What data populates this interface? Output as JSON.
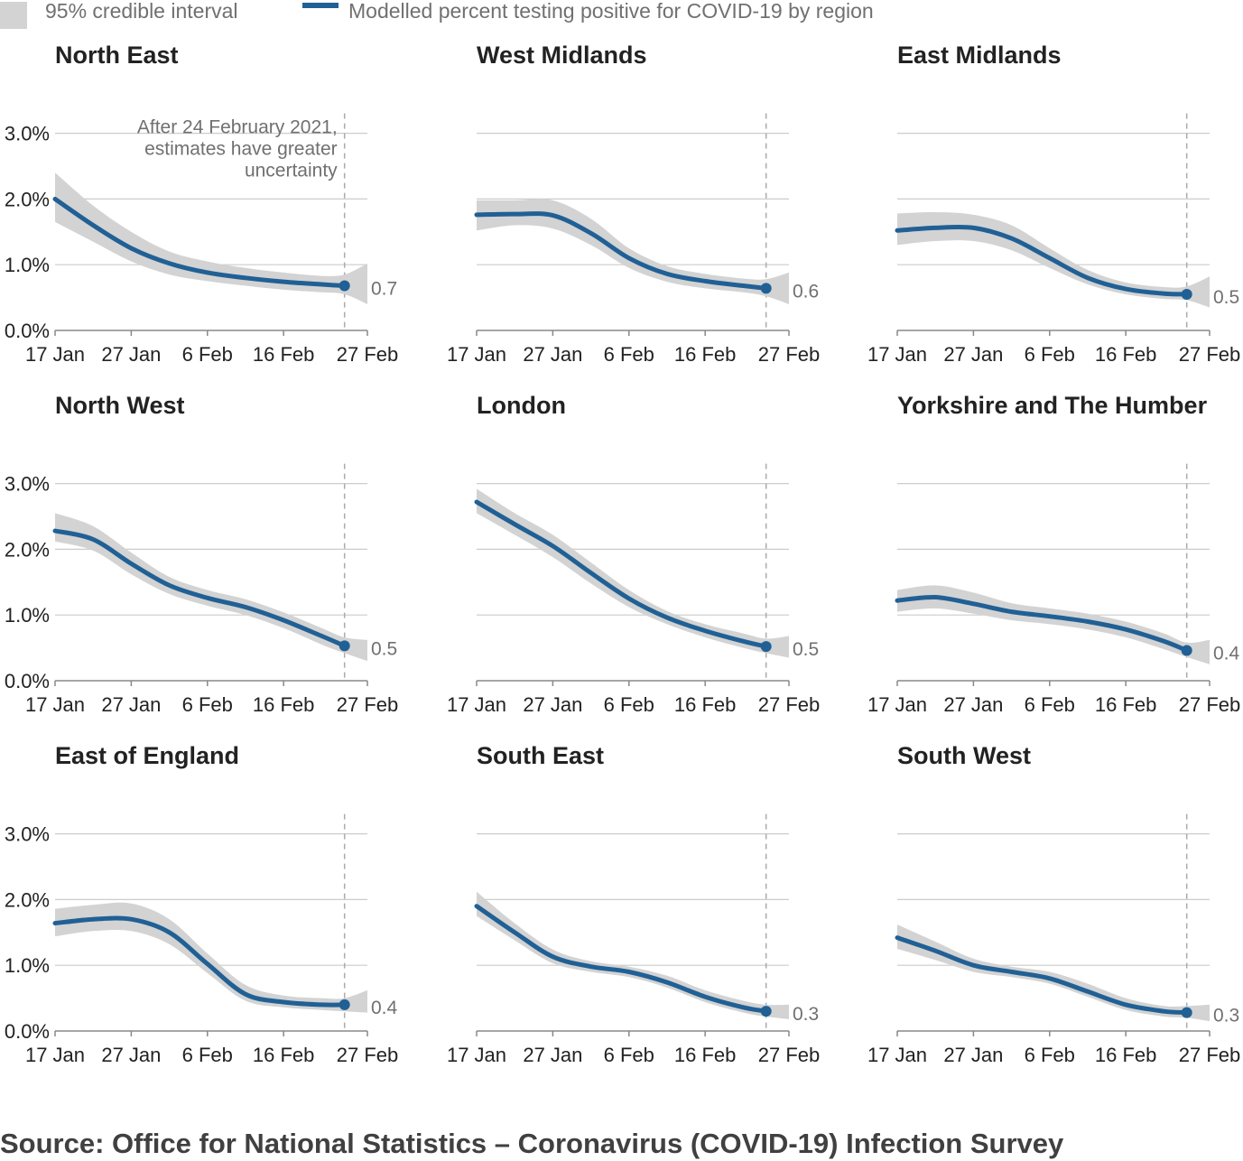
{
  "legend": {
    "band_label": "95% credible interval",
    "line_label": "Modelled percent testing positive for COVID-19 by region"
  },
  "source": "Source: Office for National Statistics – Coronavirus (COVID-19) Infection Survey",
  "colors": {
    "line": "#206095",
    "band": "#d3d3d3",
    "grid": "#cccccc",
    "cutoff": "#aaaaaa"
  },
  "chart_data": {
    "type": "line",
    "x_unit": "date",
    "x_range": [
      "2021-01-17",
      "2021-02-27"
    ],
    "x_ticks": [
      {
        "date": "2021-01-17",
        "label": "17 Jan"
      },
      {
        "date": "2021-01-27",
        "label": "27 Jan"
      },
      {
        "date": "2021-02-06",
        "label": "6 Feb"
      },
      {
        "date": "2021-02-16",
        "label": "16 Feb"
      },
      {
        "date": "2021-02-27",
        "label": "27 Feb"
      }
    ],
    "ylim": [
      0,
      3
    ],
    "y_ticks": [
      {
        "value": 0,
        "label": "0.0%"
      },
      {
        "value": 1,
        "label": "1.0%"
      },
      {
        "value": 2,
        "label": "2.0%"
      },
      {
        "value": 3,
        "label": "3.0%"
      }
    ],
    "grid": true,
    "legend_position": "top-left",
    "cutoff": {
      "date": "2021-02-24",
      "annotation": [
        "After 24 February 2021,",
        "estimates have greater",
        "uncertainty"
      ]
    },
    "x_dates": [
      "2021-01-17",
      "2021-01-22",
      "2021-01-27",
      "2021-02-01",
      "2021-02-06",
      "2021-02-11",
      "2021-02-16",
      "2021-02-21",
      "2021-02-24",
      "2021-02-27"
    ],
    "panels": [
      {
        "region": "North East",
        "end_label": "0.7",
        "values": [
          2.0,
          1.6,
          1.25,
          1.02,
          0.88,
          0.8,
          0.74,
          0.7,
          0.68,
          null
        ],
        "lower": [
          1.65,
          1.35,
          1.05,
          0.85,
          0.75,
          0.68,
          0.62,
          0.58,
          0.55,
          0.4
        ],
        "upper": [
          2.4,
          1.9,
          1.5,
          1.2,
          1.05,
          0.95,
          0.88,
          0.83,
          0.85,
          1.02
        ]
      },
      {
        "region": "West Midlands",
        "end_label": "0.6",
        "values": [
          1.76,
          1.77,
          1.75,
          1.48,
          1.1,
          0.86,
          0.75,
          0.68,
          0.64,
          null
        ],
        "lower": [
          1.52,
          1.6,
          1.55,
          1.3,
          0.95,
          0.74,
          0.64,
          0.58,
          0.52,
          0.4
        ],
        "upper": [
          1.98,
          1.98,
          1.98,
          1.7,
          1.25,
          0.98,
          0.86,
          0.79,
          0.78,
          0.88
        ]
      },
      {
        "region": "East Midlands",
        "end_label": "0.5",
        "values": [
          1.52,
          1.56,
          1.56,
          1.4,
          1.1,
          0.8,
          0.63,
          0.56,
          0.55,
          null
        ],
        "lower": [
          1.3,
          1.36,
          1.36,
          1.22,
          0.95,
          0.7,
          0.55,
          0.48,
          0.46,
          0.35
        ],
        "upper": [
          1.78,
          1.8,
          1.76,
          1.6,
          1.25,
          0.92,
          0.73,
          0.66,
          0.67,
          0.82
        ]
      },
      {
        "region": "North West",
        "end_label": "0.5",
        "values": [
          2.28,
          2.15,
          1.78,
          1.45,
          1.26,
          1.12,
          0.92,
          0.68,
          0.53,
          null
        ],
        "lower": [
          2.12,
          1.98,
          1.62,
          1.32,
          1.14,
          1.0,
          0.8,
          0.55,
          0.42,
          0.3
        ],
        "upper": [
          2.55,
          2.35,
          1.95,
          1.58,
          1.38,
          1.24,
          1.04,
          0.8,
          0.66,
          0.62
        ]
      },
      {
        "region": "London",
        "end_label": "0.5",
        "values": [
          2.72,
          2.38,
          2.05,
          1.64,
          1.25,
          0.96,
          0.76,
          0.6,
          0.52,
          null
        ],
        "lower": [
          2.55,
          2.22,
          1.88,
          1.48,
          1.12,
          0.86,
          0.66,
          0.5,
          0.42,
          0.35
        ],
        "upper": [
          2.92,
          2.55,
          2.22,
          1.8,
          1.38,
          1.06,
          0.86,
          0.72,
          0.64,
          0.68
        ]
      },
      {
        "region": "Yorkshire and The Humber",
        "end_label": "0.4",
        "values": [
          1.22,
          1.27,
          1.17,
          1.05,
          0.98,
          0.9,
          0.78,
          0.6,
          0.46,
          null
        ],
        "lower": [
          1.05,
          1.1,
          1.02,
          0.92,
          0.86,
          0.78,
          0.66,
          0.48,
          0.36,
          0.25
        ],
        "upper": [
          1.38,
          1.45,
          1.34,
          1.18,
          1.1,
          1.02,
          0.9,
          0.72,
          0.58,
          0.62
        ]
      },
      {
        "region": "East of England",
        "end_label": "0.4",
        "values": [
          1.64,
          1.7,
          1.7,
          1.5,
          1.02,
          0.56,
          0.44,
          0.4,
          0.4,
          null
        ],
        "lower": [
          1.44,
          1.52,
          1.52,
          1.32,
          0.88,
          0.46,
          0.36,
          0.32,
          0.3,
          0.28
        ],
        "upper": [
          1.86,
          1.92,
          1.94,
          1.7,
          1.18,
          0.7,
          0.54,
          0.5,
          0.5,
          0.62
        ]
      },
      {
        "region": "South East",
        "end_label": "0.3",
        "values": [
          1.9,
          1.5,
          1.13,
          0.98,
          0.9,
          0.74,
          0.52,
          0.36,
          0.3,
          null
        ],
        "lower": [
          1.75,
          1.38,
          1.03,
          0.9,
          0.82,
          0.66,
          0.44,
          0.28,
          0.22,
          0.18
        ],
        "upper": [
          2.12,
          1.64,
          1.24,
          1.06,
          0.98,
          0.84,
          0.62,
          0.46,
          0.4,
          0.4
        ]
      },
      {
        "region": "South West",
        "end_label": "0.3",
        "values": [
          1.42,
          1.22,
          1.0,
          0.9,
          0.8,
          0.6,
          0.4,
          0.3,
          0.28,
          null
        ],
        "lower": [
          1.25,
          1.08,
          0.9,
          0.82,
          0.72,
          0.52,
          0.32,
          0.22,
          0.2,
          0.15
        ],
        "upper": [
          1.62,
          1.36,
          1.1,
          0.98,
          0.9,
          0.72,
          0.5,
          0.38,
          0.38,
          0.4
        ]
      }
    ]
  }
}
